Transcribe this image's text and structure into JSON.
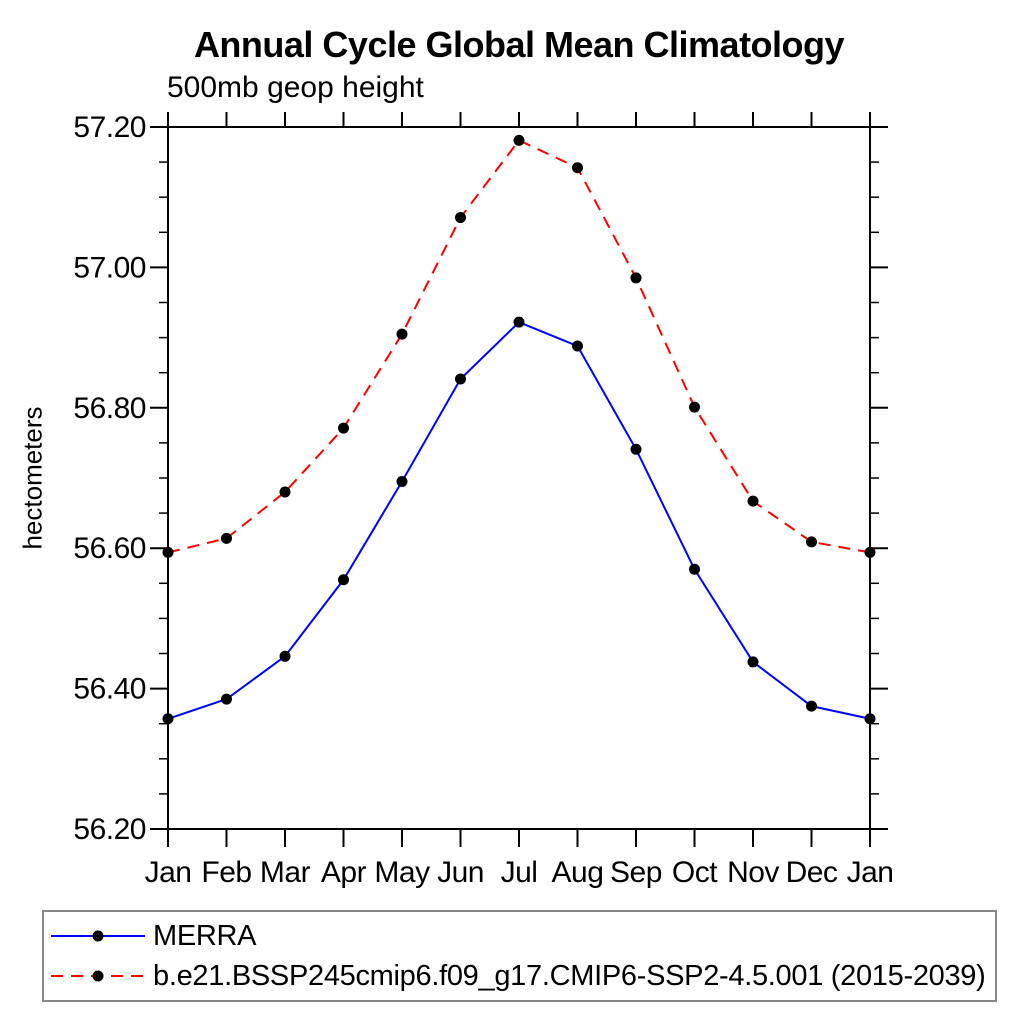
{
  "header": {
    "title": "Annual Cycle Global Mean Climatology",
    "subtitle": "500mb geop height"
  },
  "chart_data": {
    "type": "line",
    "title": "Annual Cycle Global Mean Climatology",
    "subtitle": "500mb geop height",
    "xlabel": "",
    "ylabel": "hectometers",
    "categories": [
      "Jan",
      "Feb",
      "Mar",
      "Apr",
      "May",
      "Jun",
      "Jul",
      "Aug",
      "Sep",
      "Oct",
      "Nov",
      "Dec",
      "Jan"
    ],
    "series": [
      {
        "name": "MERRA",
        "color": "#0000ff",
        "line_style": "solid",
        "dash": "none",
        "marker": "filled-circle",
        "marker_color": "#000000",
        "values": [
          56.357,
          56.385,
          56.446,
          56.555,
          56.695,
          56.841,
          56.922,
          56.888,
          56.741,
          56.57,
          56.438,
          56.375,
          56.357
        ]
      },
      {
        "name": "b.e21.BSSP245cmip6.f09_g17.CMIP6-SSP2-4.5.001 (2015-2039)",
        "color": "#ff0000",
        "line_style": "dashed",
        "dash": "12 8",
        "marker": "filled-circle",
        "marker_color": "#000000",
        "values": [
          56.594,
          56.614,
          56.68,
          56.771,
          56.905,
          57.071,
          57.181,
          57.142,
          56.985,
          56.801,
          56.667,
          56.609,
          56.594
        ]
      }
    ],
    "ylim": [
      56.2,
      57.2
    ],
    "ytick_step": 0.2,
    "yminor_step": 0.05,
    "ytick_labels": [
      "56.20",
      "56.40",
      "56.60",
      "56.80",
      "57.00",
      "57.20"
    ],
    "grid": false,
    "frame": "box-with-outward-ticks",
    "legend_position": "bottom-left-box",
    "axis_color": "#000000"
  }
}
